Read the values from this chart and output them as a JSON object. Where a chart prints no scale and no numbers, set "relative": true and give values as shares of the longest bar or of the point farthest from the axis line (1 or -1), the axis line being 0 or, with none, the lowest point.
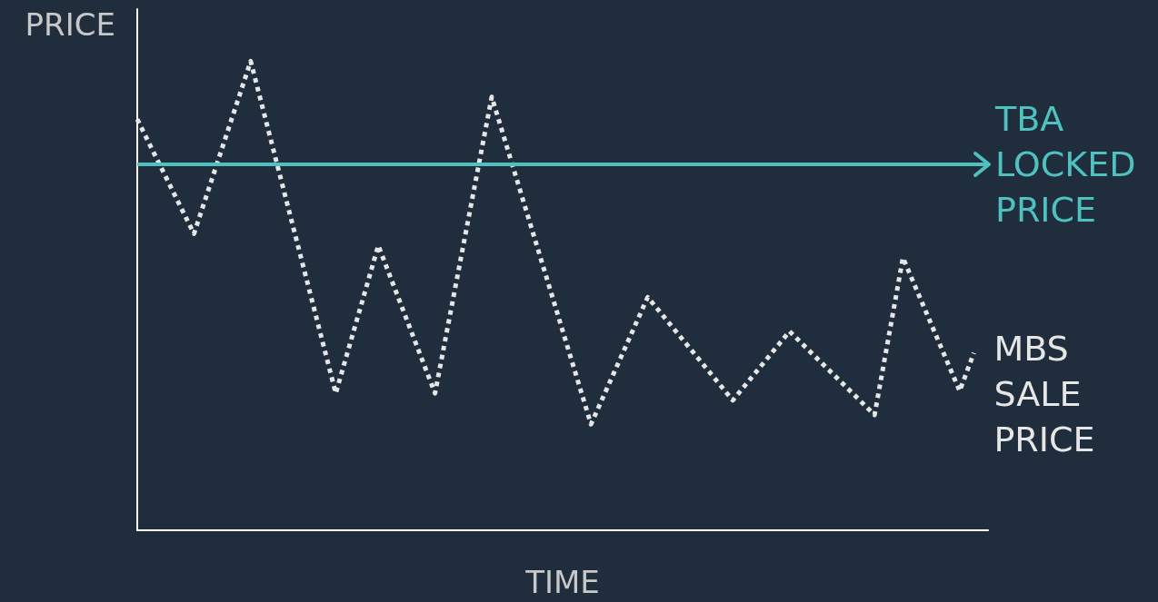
{
  "chart_data": {
    "type": "line",
    "xlabel": "TIME",
    "ylabel": "PRICE",
    "relative": true,
    "grid": false,
    "legend": false,
    "categories": [
      null,
      null,
      null,
      null,
      null,
      null,
      null,
      null,
      null,
      null,
      null,
      null,
      null,
      null,
      null,
      null,
      null,
      null,
      null,
      null,
      null,
      null,
      null,
      null,
      null,
      null,
      null,
      null,
      null,
      null,
      null,
      null,
      null,
      null,
      null,
      null,
      null,
      null,
      null,
      null,
      null,
      null,
      null,
      null,
      null,
      null,
      null,
      null,
      null,
      null,
      null,
      null,
      null,
      null,
      null,
      null,
      null,
      null,
      null,
      null,
      null
    ],
    "ref_lines": [
      {
        "axis": "y",
        "value": 0.78,
        "label": "TBA LOCKED PRICE",
        "color": "#4fc1bf",
        "line_style": "solid"
      }
    ],
    "series": [
      {
        "name": "MBS SALE PRICE",
        "color": "#e6e6e6",
        "line_style": "dotted",
        "values": [
          0.876,
          null,
          null,
          null,
          0.632,
          null,
          null,
          null,
          1,
          null,
          null,
          null,
          null,
          null,
          0.292,
          null,
          null,
          0.607,
          null,
          null,
          null,
          0.292,
          null,
          null,
          null,
          0.924,
          null,
          null,
          null,
          null,
          null,
          null,
          0.226,
          null,
          null,
          null,
          0.497,
          null,
          null,
          null,
          null,
          null,
          0.277,
          null,
          null,
          null,
          0.424,
          null,
          null,
          null,
          null,
          null,
          0.246,
          null,
          0.581,
          null,
          null,
          null,
          0.297,
          0.378,
          null
        ]
      }
    ]
  }
}
